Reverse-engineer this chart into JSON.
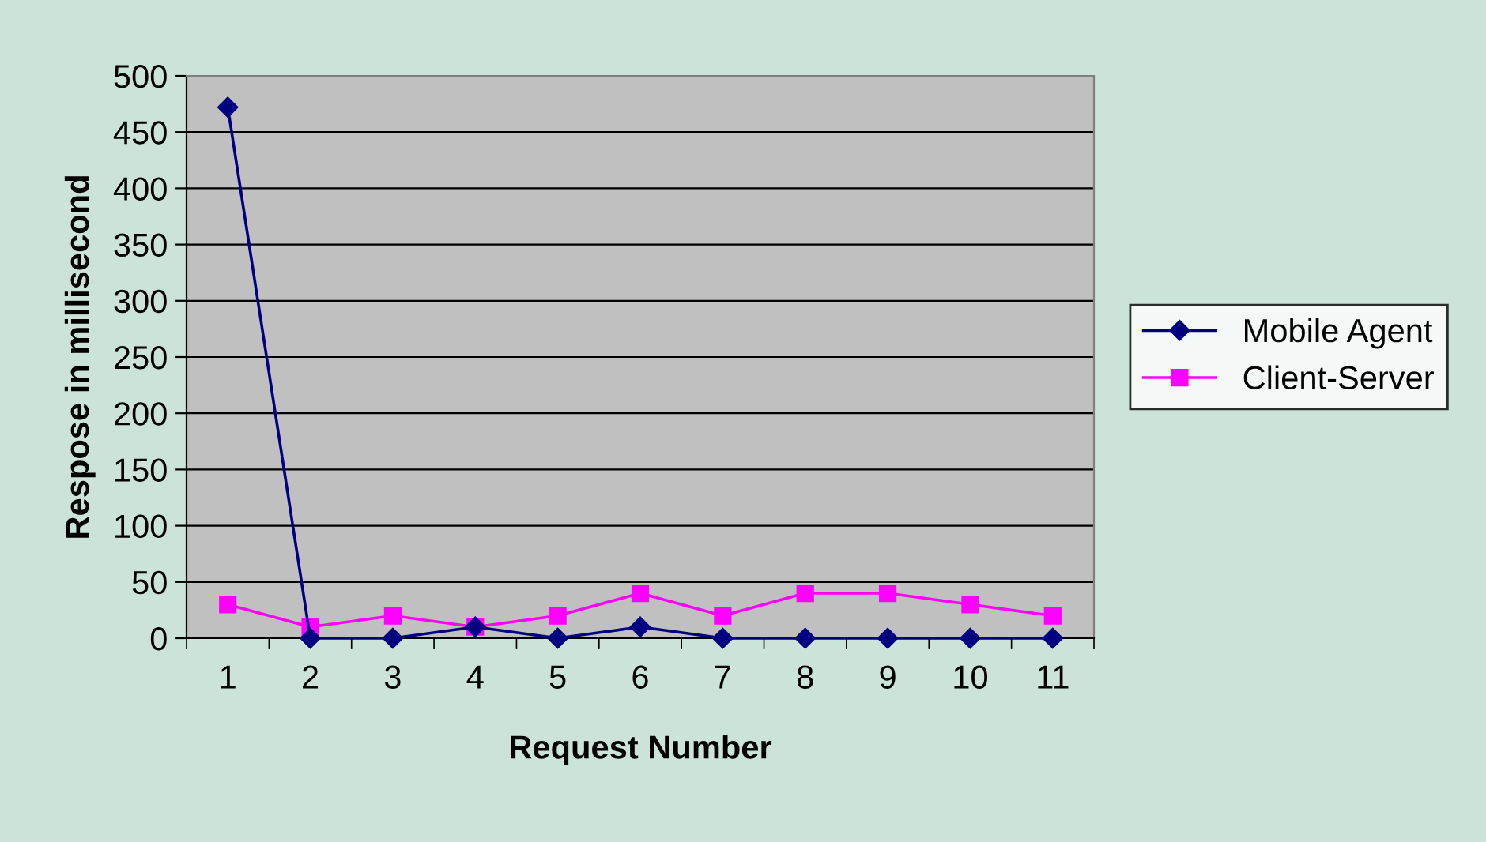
{
  "chart_data": {
    "type": "line",
    "xlabel": "Request Number",
    "ylabel": "Respose in millisecond",
    "categories": [
      "1",
      "2",
      "3",
      "4",
      "5",
      "6",
      "7",
      "8",
      "9",
      "10",
      "11"
    ],
    "series": [
      {
        "name": "Mobile Agent",
        "color": "#000080",
        "marker": "diamond",
        "values": [
          472,
          0,
          0,
          10,
          0,
          10,
          0,
          0,
          0,
          0,
          0
        ]
      },
      {
        "name": "Client-Server",
        "color": "#ff00ff",
        "marker": "square",
        "values": [
          30,
          10,
          20,
          10,
          20,
          40,
          20,
          40,
          40,
          30,
          20
        ]
      }
    ],
    "ylim": [
      0,
      500
    ],
    "yticks": [
      0,
      50,
      100,
      150,
      200,
      250,
      300,
      350,
      400,
      450,
      500
    ],
    "grid": "y",
    "legend": "right"
  }
}
